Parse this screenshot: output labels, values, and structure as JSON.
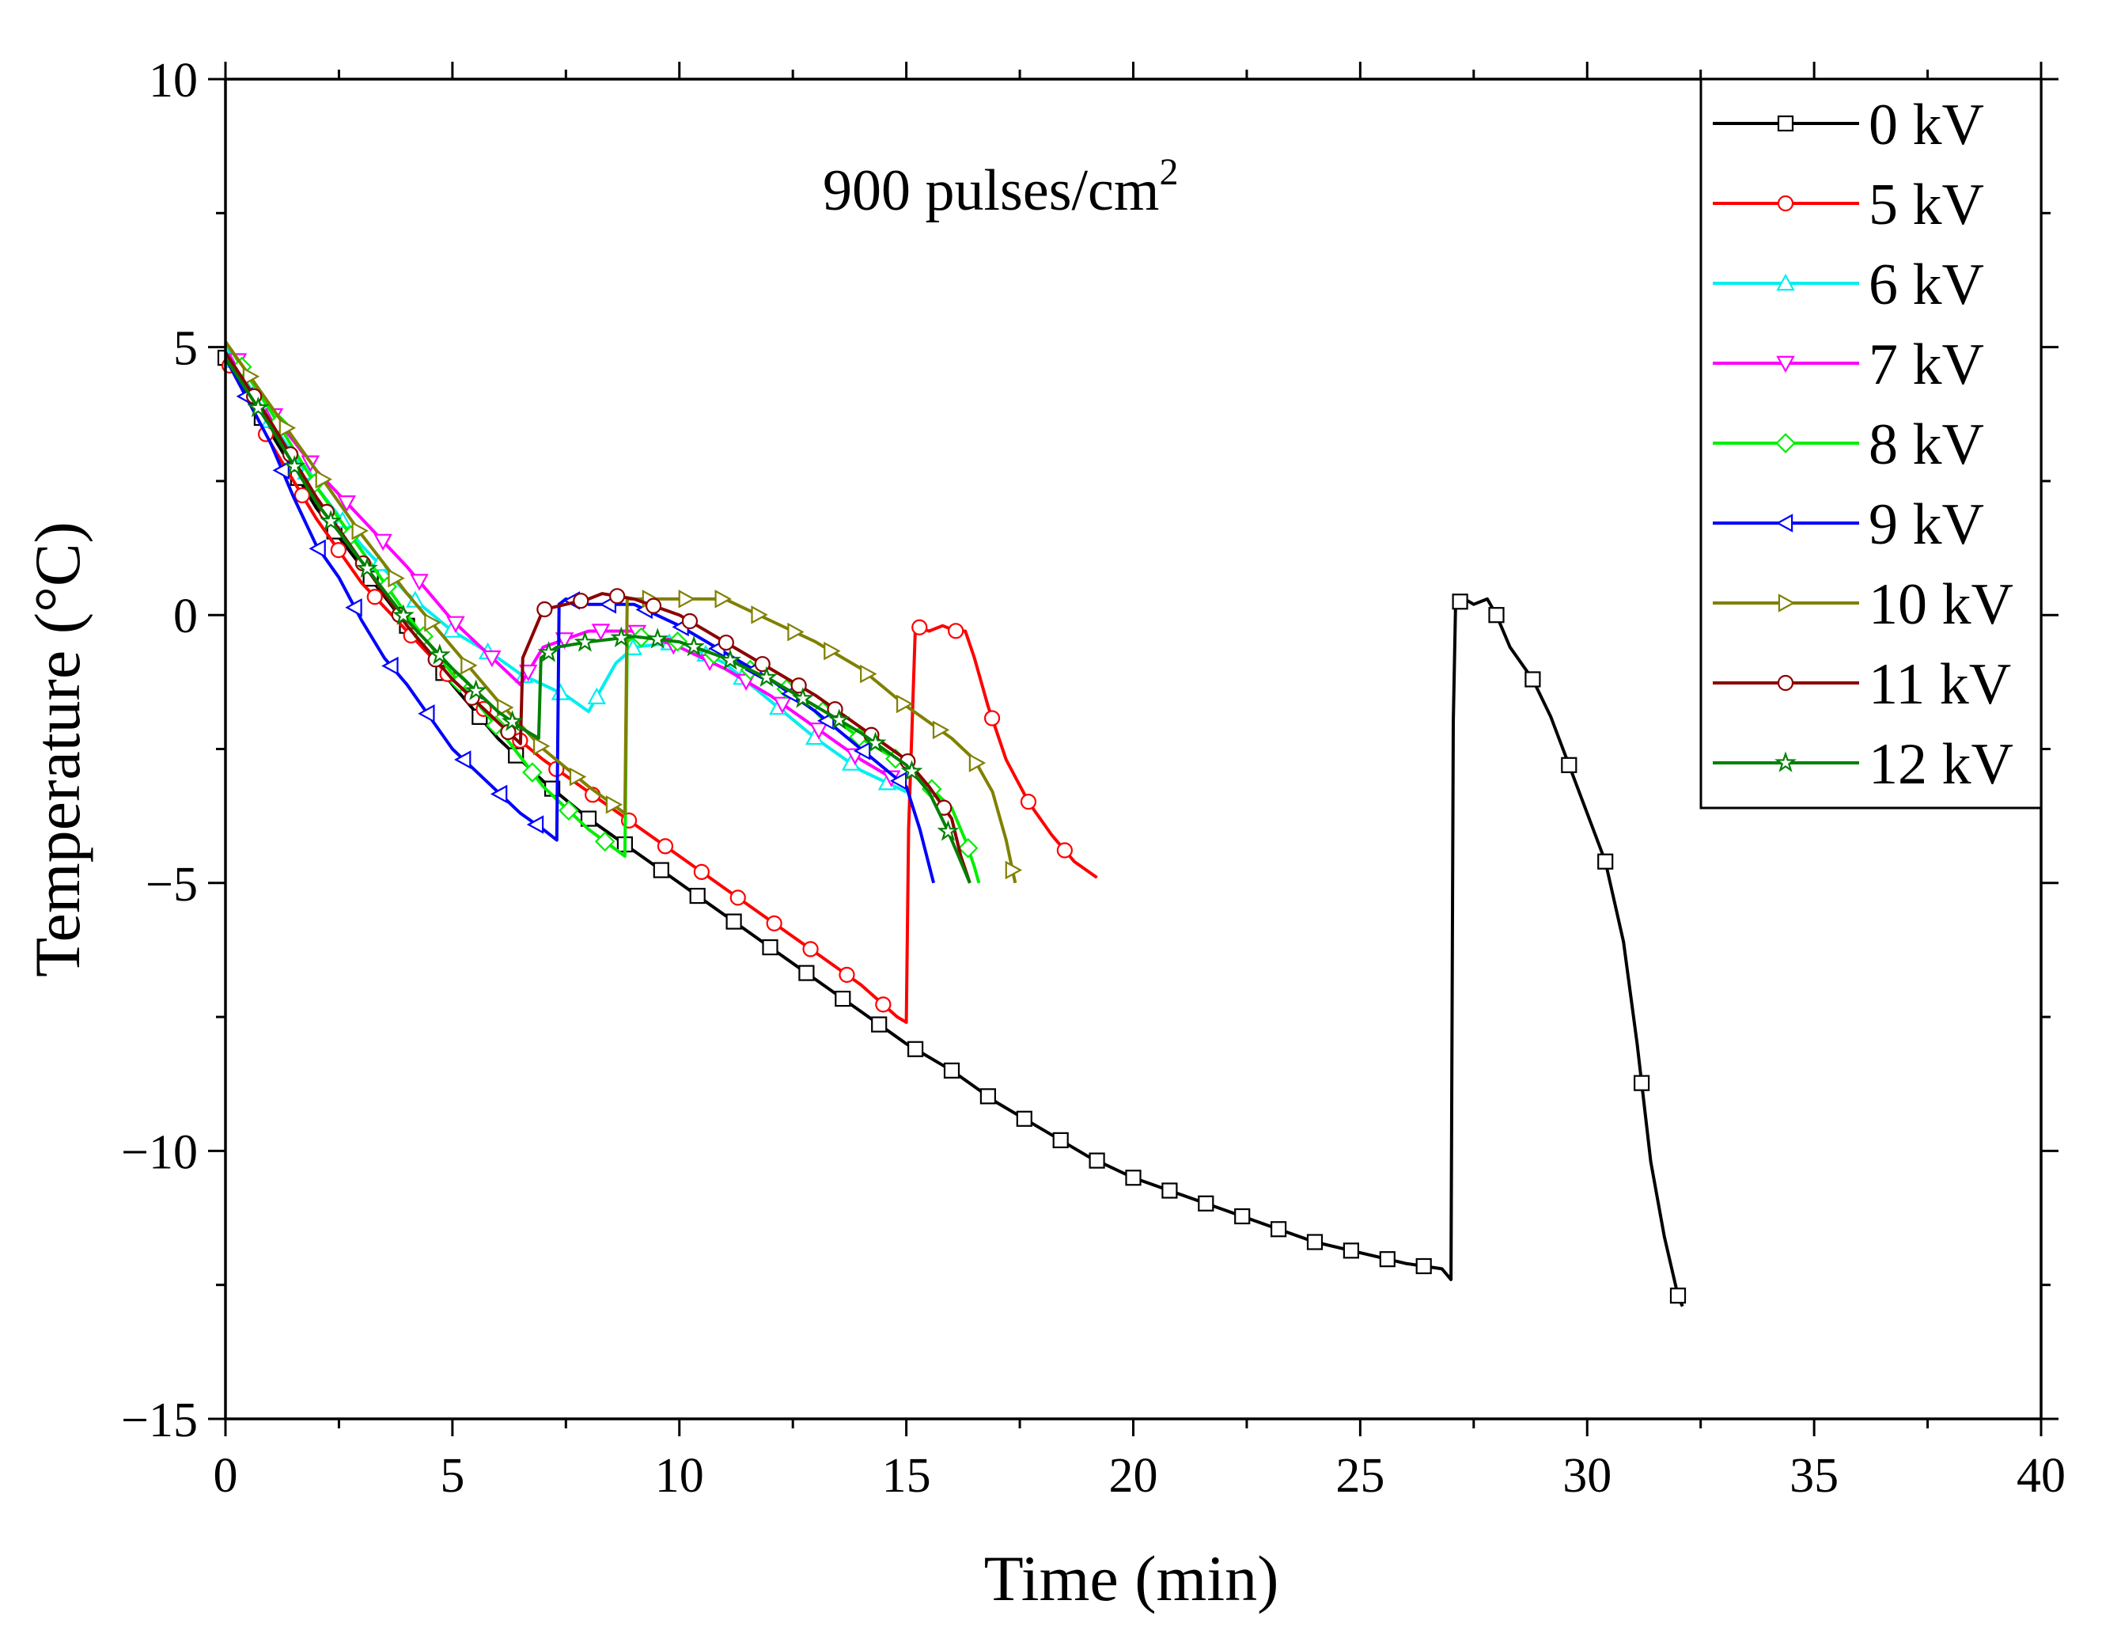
{
  "chart_data": {
    "type": "line",
    "title": "",
    "annotation": {
      "main": "900 pulses/cm",
      "superscript": "2"
    },
    "xlabel": "Time (min)",
    "ylabel": "Temperature (°C)",
    "xlim": [
      0,
      40
    ],
    "ylim": [
      -15,
      10
    ],
    "x_ticks": [
      0,
      5,
      10,
      15,
      20,
      25,
      30,
      35,
      40
    ],
    "x_tick_labels": [
      "0",
      "5",
      "10",
      "15",
      "20",
      "25",
      "30",
      "35",
      "40"
    ],
    "y_ticks": [
      -15,
      -10,
      -5,
      0,
      5,
      10
    ],
    "y_tick_labels": [
      "−15",
      "−10",
      "−5",
      "0",
      "5",
      "10"
    ],
    "grid": false,
    "legend_position": "top-right",
    "series": [
      {
        "name": "0 kV",
        "color": "#000000",
        "marker": "square",
        "x": [
          0,
          2,
          4,
          5,
          6,
          7,
          8,
          9,
          10,
          11,
          12,
          13,
          14,
          15,
          16,
          17,
          18,
          19,
          20,
          21,
          22,
          23,
          24,
          25,
          26,
          26.8,
          27.0,
          27.05,
          27.1,
          27.3,
          27.5,
          27.8,
          28.0,
          28.3,
          28.8,
          29.2,
          29.6,
          30.0,
          30.4,
          30.8,
          31.1,
          31.4,
          31.7,
          32.0,
          32.1
        ],
        "y": [
          4.8,
          2.0,
          -0.2,
          -1.3,
          -2.3,
          -3.1,
          -3.8,
          -4.4,
          -5.0,
          -5.6,
          -6.2,
          -6.8,
          -7.4,
          -8.0,
          -8.5,
          -9.1,
          -9.6,
          -10.1,
          -10.5,
          -10.8,
          -11.1,
          -11.4,
          -11.7,
          -11.9,
          -12.1,
          -12.2,
          -12.4,
          -2.0,
          0.2,
          0.3,
          0.2,
          0.3,
          0.0,
          -0.6,
          -1.2,
          -1.9,
          -2.8,
          -3.7,
          -4.6,
          -6.1,
          -8.0,
          -10.2,
          -11.6,
          -12.7,
          -12.9
        ]
      },
      {
        "name": "5 kV",
        "color": "#ff0000",
        "marker": "circle",
        "x": [
          0,
          1,
          2,
          3,
          4,
          5,
          6,
          7,
          8,
          9,
          10,
          11,
          12,
          13,
          14,
          14.8,
          15.0,
          15.05,
          15.2,
          15.5,
          15.8,
          16.1,
          16.3,
          16.5,
          16.8,
          17.2,
          17.7,
          18.2,
          18.7,
          19.2
        ],
        "y": [
          4.8,
          3.2,
          1.8,
          0.6,
          -0.3,
          -1.2,
          -2.0,
          -2.7,
          -3.3,
          -3.9,
          -4.5,
          -5.1,
          -5.7,
          -6.3,
          -6.9,
          -7.5,
          -7.6,
          -4.0,
          -0.2,
          -0.3,
          -0.2,
          -0.3,
          -0.3,
          -0.8,
          -1.7,
          -2.7,
          -3.5,
          -4.1,
          -4.6,
          -4.9
        ]
      },
      {
        "name": "6 kV",
        "color": "#00eeee",
        "marker": "triangle-up",
        "x": [
          0,
          1,
          2,
          3,
          4,
          5,
          6,
          6.5,
          7,
          7.5,
          8.0,
          8.2,
          8.6,
          9,
          10,
          11,
          12,
          13,
          14,
          15
        ],
        "y": [
          5.0,
          3.6,
          2.4,
          1.3,
          0.4,
          -0.3,
          -0.8,
          -1.1,
          -1.3,
          -1.5,
          -1.8,
          -1.5,
          -0.9,
          -0.6,
          -0.5,
          -0.9,
          -1.6,
          -2.3,
          -2.9,
          -3.3
        ]
      },
      {
        "name": "7 kV",
        "color": "#ff00ff",
        "marker": "triangle-down",
        "x": [
          0,
          1,
          2,
          3,
          4,
          5,
          6,
          6.5,
          7,
          8,
          9,
          10,
          11,
          12,
          13,
          14,
          15
        ],
        "y": [
          5.1,
          3.8,
          2.7,
          1.8,
          0.9,
          -0.1,
          -0.9,
          -1.3,
          -0.6,
          -0.3,
          -0.3,
          -0.6,
          -1.0,
          -1.5,
          -2.1,
          -2.7,
          -3.2
        ]
      },
      {
        "name": "8 kV",
        "color": "#00ee00",
        "marker": "diamond",
        "x": [
          0,
          1,
          2,
          3,
          4,
          5,
          6,
          7,
          8,
          8.8,
          8.85,
          9.0,
          10,
          11,
          12,
          13,
          14,
          15,
          15.5,
          16.0,
          16.3,
          16.5,
          16.6
        ],
        "y": [
          5.1,
          3.8,
          2.4,
          1.2,
          0.0,
          -1.1,
          -2.1,
          -3.2,
          -4.0,
          -4.5,
          -0.5,
          -0.4,
          -0.5,
          -0.8,
          -1.2,
          -1.7,
          -2.3,
          -2.8,
          -3.2,
          -3.6,
          -4.2,
          -4.7,
          -5.0
        ]
      },
      {
        "name": "9 kV",
        "color": "#0000ff",
        "marker": "triangle-left",
        "x": [
          0,
          1,
          1.5,
          2,
          2.5,
          3,
          3.5,
          4,
          4.5,
          5,
          5.5,
          6,
          6.5,
          7,
          7.3,
          7.35,
          7.5,
          8,
          9,
          10,
          11,
          12,
          13,
          14,
          15,
          15.3,
          15.6
        ],
        "y": [
          4.8,
          3.2,
          2.2,
          1.3,
          0.7,
          -0.1,
          -0.8,
          -1.3,
          -1.9,
          -2.5,
          -2.9,
          -3.3,
          -3.7,
          -4.0,
          -4.2,
          0.2,
          0.3,
          0.2,
          0.2,
          -0.2,
          -0.7,
          -1.2,
          -1.8,
          -2.5,
          -3.2,
          -4.0,
          -5.0
        ]
      },
      {
        "name": "10 kV",
        "color": "#808000",
        "marker": "triangle-right",
        "x": [
          0,
          1,
          2,
          3,
          4,
          5,
          6,
          7,
          8,
          8.8,
          8.85,
          9,
          10,
          11,
          12,
          13,
          14,
          15,
          16,
          16.5,
          16.9,
          17.2,
          17.4
        ],
        "y": [
          5.1,
          3.9,
          2.7,
          1.5,
          0.4,
          -0.6,
          -1.6,
          -2.5,
          -3.2,
          -3.7,
          0.3,
          0.3,
          0.3,
          0.3,
          -0.1,
          -0.5,
          -1.0,
          -1.7,
          -2.3,
          -2.7,
          -3.3,
          -4.2,
          -5.0
        ]
      },
      {
        "name": "11 kV",
        "color": "#8b0000",
        "marker": "circle",
        "x": [
          0,
          1,
          2,
          3,
          4,
          5,
          6,
          6.5,
          6.55,
          7,
          7.5,
          8,
          8.3,
          9,
          10,
          11,
          12,
          13,
          14,
          15,
          15.5,
          16.0,
          16.2,
          16.4
        ],
        "y": [
          4.9,
          3.6,
          2.2,
          1.0,
          -0.2,
          -1.2,
          -2.0,
          -2.4,
          -0.8,
          0.1,
          0.2,
          0.3,
          0.4,
          0.3,
          0.0,
          -0.5,
          -1.0,
          -1.5,
          -2.1,
          -2.7,
          -3.2,
          -3.8,
          -4.5,
          -5.0
        ]
      },
      {
        "name": "12 kV",
        "color": "#008000",
        "marker": "star",
        "x": [
          0,
          1,
          2,
          3,
          4,
          5,
          6,
          6.5,
          6.9,
          6.95,
          7.3,
          8,
          9,
          10,
          11,
          12,
          13,
          14,
          15,
          15.5,
          15.9,
          16.2,
          16.4
        ],
        "y": [
          4.8,
          3.5,
          2.1,
          1.0,
          -0.1,
          -1.0,
          -1.8,
          -2.1,
          -2.3,
          -0.8,
          -0.6,
          -0.5,
          -0.4,
          -0.5,
          -0.8,
          -1.2,
          -1.7,
          -2.2,
          -2.8,
          -3.3,
          -4.0,
          -4.6,
          -5.0
        ]
      }
    ]
  }
}
